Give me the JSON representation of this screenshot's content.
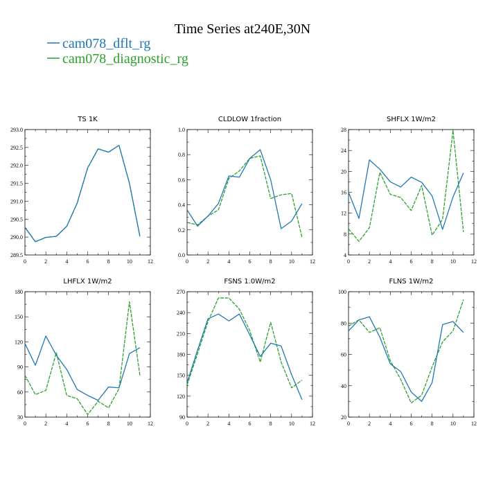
{
  "figure": {
    "title": "Time Series at240E,30N",
    "legend": [
      {
        "label": "cam078_dflt_rg",
        "color": "#1f77b4",
        "dash": "solid"
      },
      {
        "label": "cam078_diagnostic_rg",
        "color": "#2ca02c",
        "dash": "dashed"
      }
    ]
  },
  "chart_data": [
    {
      "type": "line",
      "title": "TS   1K",
      "x": [
        0,
        1,
        2,
        3,
        4,
        5,
        6,
        7,
        8,
        9,
        10,
        11
      ],
      "xlim": [
        0,
        12
      ],
      "xticks": [
        0,
        2,
        4,
        6,
        8,
        10,
        12
      ],
      "ylim": [
        289.5,
        293.0
      ],
      "yticks": [
        "289.5",
        "290.0",
        "290.5",
        "291.0",
        "291.5",
        "292.0",
        "292.5",
        "293.0"
      ],
      "series": [
        {
          "name": "cam078_dflt_rg",
          "values": [
            290.27,
            289.87,
            289.99,
            290.02,
            290.3,
            290.95,
            291.93,
            292.46,
            292.37,
            292.56,
            291.5,
            290.02
          ]
        },
        {
          "name": "cam078_diagnostic_rg",
          "values": [
            290.27,
            289.87,
            289.99,
            290.02,
            290.3,
            290.95,
            291.93,
            292.46,
            292.37,
            292.56,
            291.5,
            290.02
          ]
        }
      ]
    },
    {
      "type": "line",
      "title": "CLDLOW   1fraction",
      "x": [
        0,
        1,
        2,
        3,
        4,
        5,
        6,
        7,
        8,
        9,
        10,
        11
      ],
      "xlim": [
        0,
        12
      ],
      "xticks": [
        0,
        2,
        4,
        6,
        8,
        10,
        12
      ],
      "ylim": [
        0.0,
        1.0
      ],
      "yticks": [
        "0.0",
        "0.2",
        "0.4",
        "0.6",
        "0.8",
        "1.0"
      ],
      "series": [
        {
          "name": "cam078_dflt_rg",
          "values": [
            0.36,
            0.23,
            0.31,
            0.41,
            0.63,
            0.62,
            0.77,
            0.84,
            0.6,
            0.21,
            0.27,
            0.41
          ]
        },
        {
          "name": "cam078_diagnostic_rg",
          "values": [
            0.26,
            0.24,
            0.31,
            0.36,
            0.61,
            0.67,
            0.77,
            0.79,
            0.45,
            0.48,
            0.49,
            0.14
          ]
        }
      ]
    },
    {
      "type": "line",
      "title": "SHFLX   1W/m2",
      "x": [
        0,
        1,
        2,
        3,
        4,
        5,
        6,
        7,
        8,
        9,
        10,
        11
      ],
      "xlim": [
        0,
        12
      ],
      "xticks": [
        0,
        2,
        4,
        6,
        8,
        10,
        12
      ],
      "ylim": [
        4,
        28
      ],
      "yticks": [
        "4",
        "8",
        "12",
        "16",
        "20",
        "24",
        "28"
      ],
      "series": [
        {
          "name": "cam078_dflt_rg",
          "values": [
            16.0,
            11.0,
            22.2,
            20.4,
            18.0,
            17.0,
            18.9,
            17.9,
            15.3,
            8.9,
            15.1,
            19.7
          ]
        },
        {
          "name": "cam078_diagnostic_rg",
          "values": [
            9.0,
            6.6,
            9.2,
            19.8,
            15.6,
            15.0,
            12.5,
            17.3,
            7.8,
            10.8,
            27.8,
            8.4
          ]
        }
      ]
    },
    {
      "type": "line",
      "title": "LHFLX   1W/m2",
      "x": [
        0,
        1,
        2,
        3,
        4,
        5,
        6,
        7,
        8,
        9,
        10,
        11
      ],
      "xlim": [
        0,
        12
      ],
      "xticks": [
        0,
        2,
        4,
        6,
        8,
        10,
        12
      ],
      "ylim": [
        30,
        180
      ],
      "yticks": [
        "30",
        "60",
        "90",
        "120",
        "150",
        "180"
      ],
      "series": [
        {
          "name": "cam078_dflt_rg",
          "values": [
            118,
            92,
            127,
            104,
            87,
            63,
            56,
            50,
            66,
            65,
            106,
            113
          ]
        },
        {
          "name": "cam078_diagnostic_rg",
          "values": [
            80,
            57,
            62,
            107,
            56,
            52,
            33,
            49,
            41,
            64,
            168,
            80
          ]
        }
      ]
    },
    {
      "type": "line",
      "title": "FSNS   1.0W/m2",
      "x": [
        0,
        1,
        2,
        3,
        4,
        5,
        6,
        7,
        8,
        9,
        10,
        11
      ],
      "xlim": [
        0,
        12
      ],
      "xticks": [
        0,
        2,
        4,
        6,
        8,
        10,
        12
      ],
      "ylim": [
        90,
        270
      ],
      "yticks": [
        "90",
        "120",
        "150",
        "180",
        "210",
        "240",
        "270"
      ],
      "series": [
        {
          "name": "cam078_dflt_rg",
          "values": [
            139,
            186,
            231,
            238,
            228,
            238,
            208,
            177,
            196,
            192,
            151,
            115
          ]
        },
        {
          "name": "cam078_diagnostic_rg",
          "values": [
            136,
            181,
            227,
            261,
            261,
            245,
            214,
            169,
            226,
            169,
            132,
            143
          ]
        }
      ]
    },
    {
      "type": "line",
      "title": "FLNS   1W/m2",
      "x": [
        0,
        1,
        2,
        3,
        4,
        5,
        6,
        7,
        8,
        9,
        10,
        11
      ],
      "xlim": [
        0,
        12
      ],
      "xticks": [
        0,
        2,
        4,
        6,
        8,
        10,
        12
      ],
      "ylim": [
        20,
        100
      ],
      "yticks": [
        "20",
        "40",
        "60",
        "80",
        "100"
      ],
      "series": [
        {
          "name": "cam078_dflt_rg",
          "values": [
            75,
            82,
            84,
            71,
            54,
            49,
            36,
            30,
            42,
            79,
            81,
            74
          ]
        },
        {
          "name": "cam078_diagnostic_rg",
          "values": [
            78,
            82,
            74,
            77,
            56,
            44,
            29,
            34,
            52,
            68,
            75,
            95
          ]
        }
      ]
    }
  ]
}
